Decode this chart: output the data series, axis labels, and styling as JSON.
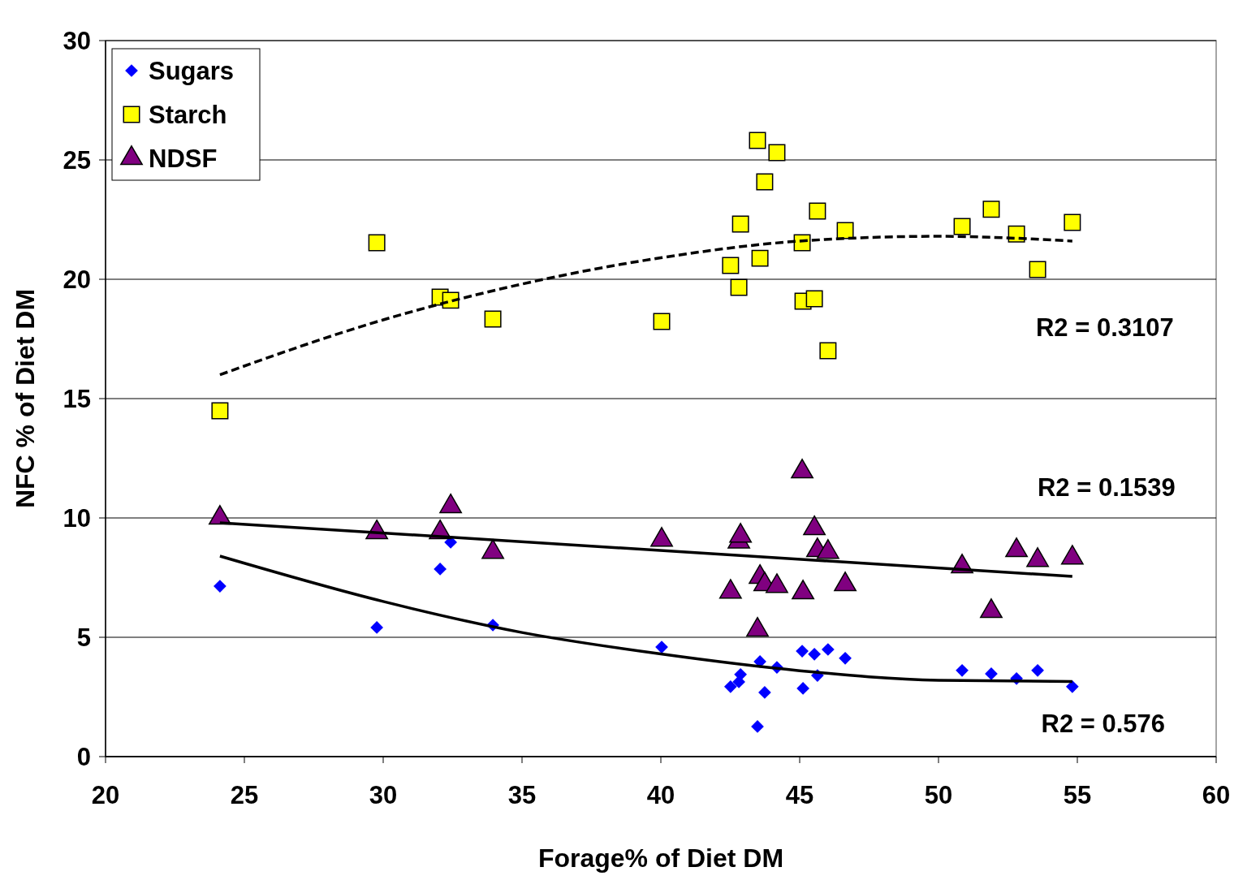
{
  "chart_data": {
    "type": "scatter",
    "xlabel": "Forage% of Diet DM",
    "ylabel": "NFC % of Diet DM",
    "xlim": [
      20,
      60
    ],
    "xticks": [
      20,
      25,
      30,
      35,
      40,
      45,
      50,
      55,
      60
    ],
    "ylim": [
      0,
      30
    ],
    "yticks": [
      0,
      5,
      10,
      15,
      20,
      25,
      30
    ],
    "grid": "y",
    "legend": "top left",
    "series": [
      {
        "name": "Sugars",
        "color": "#0000ff",
        "marker": "diamond",
        "x": [
          24.12,
          29.77,
          32.05,
          32.43,
          33.95,
          40.03,
          42.51,
          42.81,
          42.87,
          43.48,
          43.57,
          43.74,
          44.18,
          45.09,
          45.12,
          45.53,
          45.64,
          46.02,
          46.64,
          50.85,
          51.9,
          52.81,
          53.57,
          54.82
        ],
        "values": [
          7.14,
          5.41,
          7.86,
          8.98,
          5.51,
          4.59,
          2.93,
          3.13,
          3.44,
          1.26,
          3.98,
          2.69,
          3.74,
          4.42,
          2.86,
          4.29,
          3.4,
          4.49,
          4.12,
          3.61,
          3.47,
          3.27,
          3.61,
          2.93
        ]
      },
      {
        "name": "Starch",
        "color": "#ffff00",
        "marker": "square",
        "x": [
          24.12,
          29.77,
          32.05,
          32.43,
          33.95,
          40.03,
          42.51,
          42.81,
          42.87,
          43.48,
          43.57,
          43.74,
          44.18,
          45.09,
          45.12,
          45.53,
          45.64,
          46.02,
          46.64,
          50.85,
          51.9,
          52.81,
          53.57,
          54.82
        ],
        "values": [
          14.49,
          21.53,
          19.25,
          19.12,
          18.33,
          18.23,
          20.58,
          19.66,
          22.31,
          25.82,
          20.88,
          24.08,
          25.31,
          21.53,
          19.08,
          19.18,
          22.86,
          17.01,
          22.04,
          22.21,
          22.93,
          21.9,
          20.41,
          22.38
        ]
      },
      {
        "name": "NDSF",
        "color": "#800080",
        "marker": "triangle",
        "x": [
          24.12,
          29.77,
          32.05,
          32.43,
          33.95,
          40.03,
          42.51,
          42.81,
          42.87,
          43.48,
          43.57,
          43.74,
          44.18,
          45.09,
          45.12,
          45.53,
          45.64,
          46.02,
          46.64,
          50.85,
          51.9,
          52.81,
          53.57,
          54.82
        ],
        "values": [
          10.0,
          9.39,
          9.39,
          10.48,
          8.57,
          9.08,
          6.9,
          9.0,
          9.25,
          5.31,
          7.52,
          7.21,
          7.14,
          11.94,
          6.87,
          9.56,
          8.64,
          8.57,
          7.21,
          7.96,
          6.09,
          8.64,
          8.23,
          8.33
        ]
      },
      {
        "type": "line",
        "color": "#000000",
        "line_style": "dashed",
        "x": [
          24.12,
          30,
          35,
          40,
          45,
          50,
          54.82
        ],
        "values": [
          16.0,
          18.3,
          19.8,
          20.9,
          21.6,
          21.8,
          21.6
        ]
      },
      {
        "type": "line",
        "color": "#000000",
        "line_style": "solid",
        "x": [
          24.12,
          54.82
        ],
        "values": [
          9.8,
          7.55
        ]
      },
      {
        "type": "line",
        "color": "#000000",
        "line_style": "solid",
        "x": [
          24.12,
          30,
          35,
          40,
          45,
          50,
          54.82
        ],
        "values": [
          8.4,
          6.5,
          5.2,
          4.3,
          3.6,
          3.2,
          3.15
        ]
      }
    ],
    "annotations": [
      "R2 = 0.3107",
      "R2 = 0.1539",
      "R2 = 0.576"
    ]
  }
}
